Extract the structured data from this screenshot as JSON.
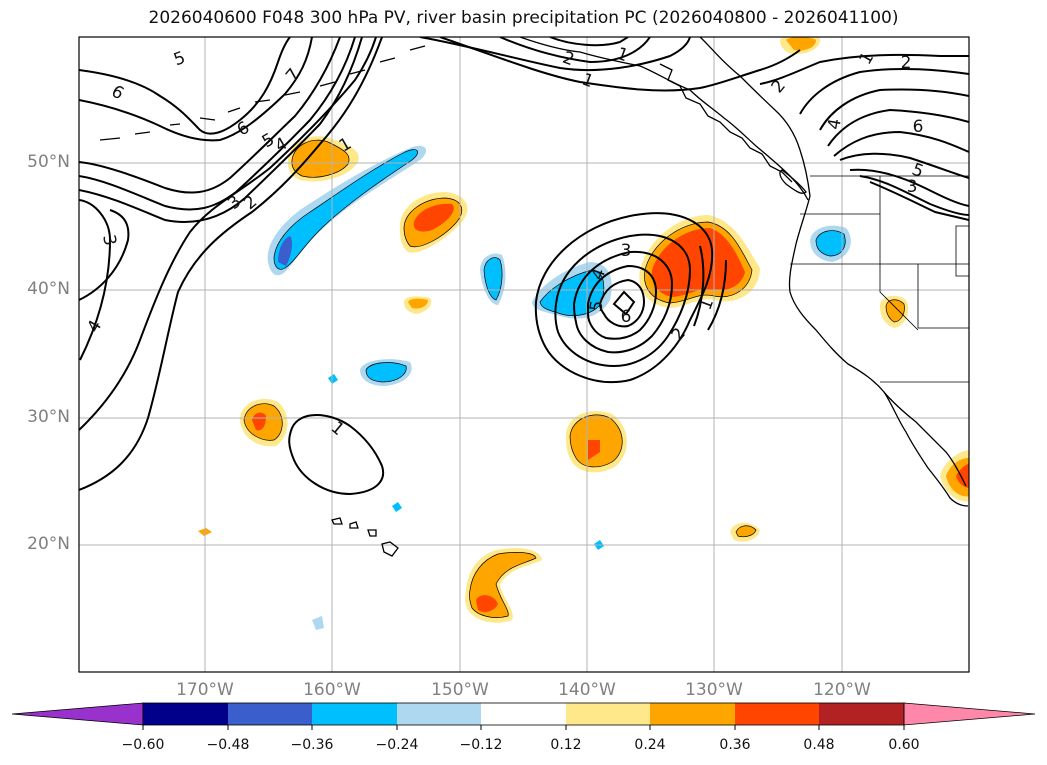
{
  "title": "2026040600 F048 300 hPa PV, river basin precipitation PC (2026040800 - 2026041100)",
  "lat_labels": [
    "50°N",
    "40°N",
    "30°N",
    "20°N"
  ],
  "lon_labels": [
    "170°W",
    "160°W",
    "150°W",
    "140°W",
    "130°W",
    "120°W"
  ],
  "pv_contour_labels": [
    "5",
    "6",
    "7",
    "6",
    "5",
    "4",
    "1",
    "3",
    "2",
    "3",
    "4",
    "2",
    "1",
    "2",
    "1",
    "2",
    "1",
    "4",
    "6",
    "3",
    "5",
    "3",
    "4",
    "5",
    "6",
    "2",
    "1",
    "1"
  ],
  "colorbar": {
    "colors": [
      "#9932cc",
      "#00008b",
      "#3a5fcd",
      "#00bfff",
      "#add8f0",
      "#ffffff",
      "#ffe88a",
      "#ffa500",
      "#ff4500",
      "#b22222",
      "#ff88aa"
    ],
    "tick_labels": [
      "−0.60",
      "−0.48",
      "−0.36",
      "−0.24",
      "−0.12",
      "0.12",
      "0.24",
      "0.36",
      "0.48",
      "0.60"
    ]
  }
}
